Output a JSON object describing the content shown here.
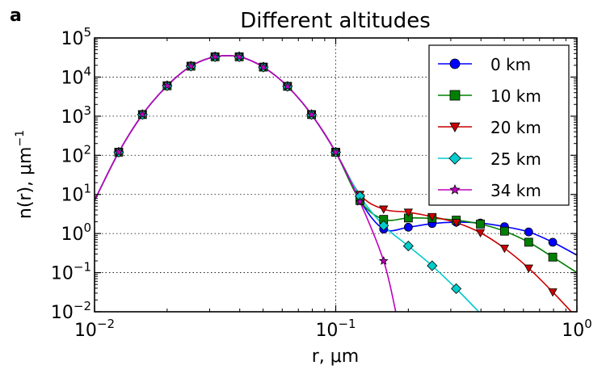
{
  "panel_label": "a",
  "chart_data": {
    "type": "line",
    "title": "Different altitudes",
    "xlabel": "r, μm",
    "ylabel": "n(r), μm",
    "ylabel_exponent": "−1",
    "x_scale": "log",
    "y_scale": "log",
    "xlim": [
      0.01,
      1
    ],
    "ylim": [
      0.01,
      100000
    ],
    "grid": "dotted",
    "legend_position": "top-right",
    "x_ticks": [
      {
        "base": "10",
        "exp": "−2"
      },
      {
        "base": "10",
        "exp": "−1"
      },
      {
        "base": "10",
        "exp": "0"
      }
    ],
    "y_ticks": [
      {
        "base": "10",
        "exp": "−2"
      },
      {
        "base": "10",
        "exp": "−1"
      },
      {
        "base": "10",
        "exp": "0"
      },
      {
        "base": "10",
        "exp": "1"
      },
      {
        "base": "10",
        "exp": "2"
      },
      {
        "base": "10",
        "exp": "3"
      },
      {
        "base": "10",
        "exp": "4"
      },
      {
        "base": "10",
        "exp": "5"
      }
    ],
    "series": [
      {
        "name": "0 km",
        "color": "#0000ff",
        "marker": "circle",
        "x": [
          0.01,
          0.0126,
          0.0158,
          0.02,
          0.0251,
          0.0316,
          0.0398,
          0.0501,
          0.0631,
          0.0794,
          0.1,
          0.126,
          0.158,
          0.2,
          0.251,
          0.316,
          0.398,
          0.501,
          0.631,
          0.794,
          1.0
        ],
        "y": [
          7,
          120,
          1100,
          6000,
          19000,
          33000,
          33000,
          18000,
          5800,
          1100,
          120,
          7,
          1.3,
          1.45,
          1.8,
          1.95,
          1.85,
          1.5,
          1.1,
          0.6,
          0.28
        ]
      },
      {
        "name": "10 km",
        "color": "#008000",
        "marker": "square",
        "x": [
          0.01,
          0.0126,
          0.0158,
          0.02,
          0.0251,
          0.0316,
          0.0398,
          0.0501,
          0.0631,
          0.0794,
          0.1,
          0.126,
          0.158,
          0.2,
          0.251,
          0.316,
          0.398,
          0.501,
          0.631,
          0.794,
          1.0
        ],
        "y": [
          7,
          120,
          1100,
          6000,
          19000,
          33000,
          33000,
          18000,
          5800,
          1100,
          120,
          7,
          2.3,
          2.5,
          2.45,
          2.2,
          1.75,
          1.15,
          0.6,
          0.25,
          0.1
        ]
      },
      {
        "name": "20 km",
        "color": "#cc0000",
        "marker": "triangle-down",
        "x": [
          0.01,
          0.0126,
          0.0158,
          0.02,
          0.0251,
          0.0316,
          0.0398,
          0.0501,
          0.0631,
          0.0794,
          0.1,
          0.126,
          0.158,
          0.2,
          0.251,
          0.316,
          0.398,
          0.501,
          0.631,
          0.794,
          1.0
        ],
        "y": [
          7,
          120,
          1100,
          6000,
          19000,
          33000,
          33000,
          18000,
          5800,
          1100,
          120,
          10,
          4.2,
          3.5,
          2.7,
          1.9,
          1.05,
          0.42,
          0.13,
          0.032,
          0.007
        ]
      },
      {
        "name": "25 km",
        "color": "#00cccc",
        "marker": "diamond",
        "x": [
          0.01,
          0.0126,
          0.0158,
          0.02,
          0.0251,
          0.0316,
          0.0398,
          0.0501,
          0.0631,
          0.0794,
          0.1,
          0.126,
          0.158,
          0.2,
          0.251,
          0.316,
          0.398
        ],
        "y": [
          7,
          120,
          1100,
          6000,
          19000,
          33000,
          33000,
          18000,
          5800,
          1100,
          120,
          9,
          1.6,
          0.48,
          0.15,
          0.039,
          0.009
        ]
      },
      {
        "name": "34 km",
        "color": "#bf00bf",
        "marker": "star",
        "x": [
          0.01,
          0.0126,
          0.0158,
          0.02,
          0.0251,
          0.0316,
          0.0398,
          0.0501,
          0.0631,
          0.0794,
          0.1,
          0.126,
          0.158,
          0.178
        ],
        "y": [
          7,
          120,
          1100,
          6000,
          19000,
          33000,
          33000,
          18000,
          5800,
          1100,
          120,
          6.5,
          0.2,
          0.009
        ]
      }
    ]
  }
}
